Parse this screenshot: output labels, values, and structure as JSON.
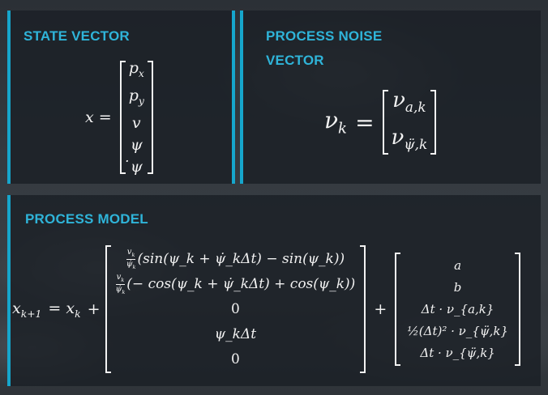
{
  "panels": {
    "state": {
      "title": "STATE VECTOR",
      "lhs": "x =",
      "entries": [
        "p",
        "p",
        "v",
        "ψ",
        "ψ"
      ],
      "entry_subs": [
        "x",
        "y",
        "",
        "",
        ""
      ]
    },
    "noise": {
      "title_line1": "PROCESS NOISE",
      "title_line2": "VECTOR",
      "lhs": "ν",
      "lhs_sub": "k",
      "eq": "=",
      "entries": [
        "ν",
        "ν"
      ],
      "entry_subs": [
        "a,k",
        "ψ̈,k"
      ]
    },
    "model": {
      "title": "PROCESS MODEL",
      "lhs": "x",
      "lhs_sub": "k+1",
      "eq": "= x",
      "eq_sub": "k",
      "plus1": "+",
      "plus2": "+",
      "frac_num": "v",
      "frac_num_sub": "k",
      "frac_den": "ψ̇",
      "frac_den_sub": "k",
      "row1": "(sin(ψ_k + ψ̇_kΔt) − sin(ψ_k))",
      "row2": "(− cos(ψ_k + ψ̇_kΔt) + cos(ψ_k))",
      "row3": "0",
      "row4": "ψ_kΔt",
      "row5": "0",
      "noise_rows": [
        "a",
        "b",
        "Δt · ν_{a,k}",
        "½(Δt)² · ν_{ψ̈,k}",
        "Δt · ν_{ψ̈,k}"
      ]
    }
  }
}
